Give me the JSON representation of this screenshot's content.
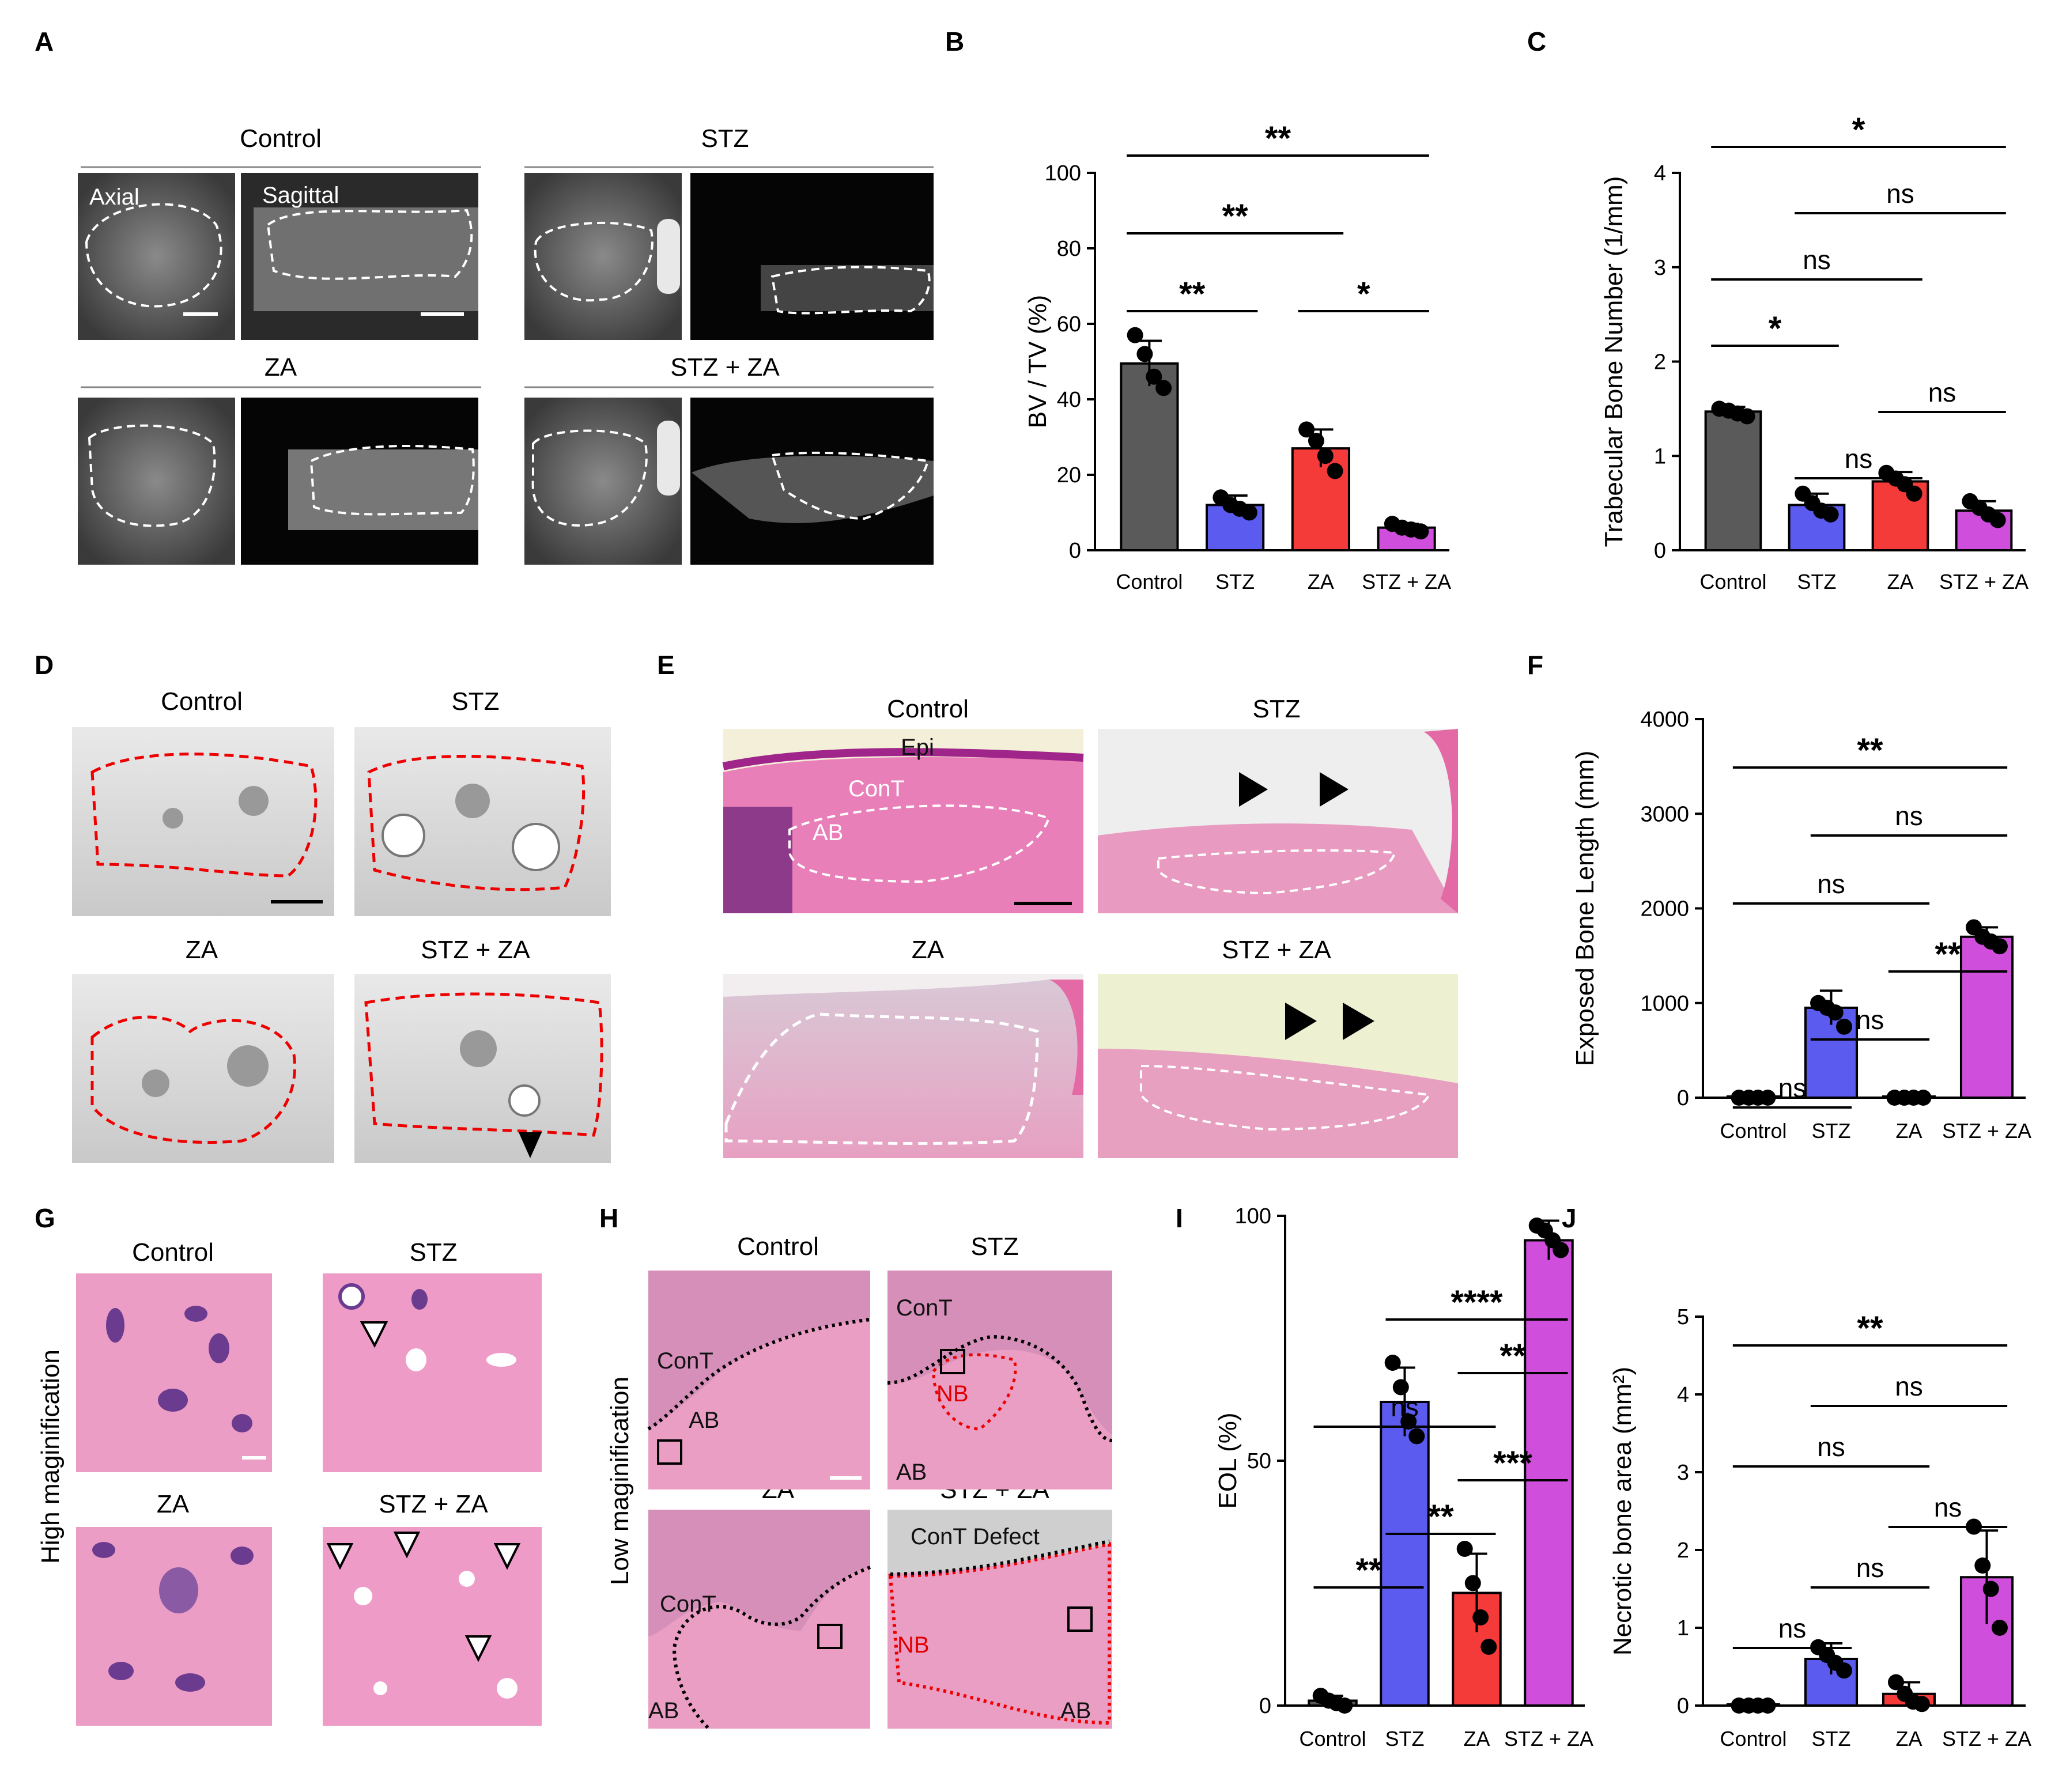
{
  "panels": {
    "A": {
      "letter": "A",
      "titles": [
        "Control",
        "STZ",
        "ZA",
        "STZ + ZA"
      ],
      "view_labels": [
        "Axial",
        "Sagittal"
      ]
    },
    "D": {
      "letter": "D",
      "titles": [
        "Control",
        "STZ",
        "ZA",
        "STZ + ZA"
      ]
    },
    "E": {
      "letter": "E",
      "titles": [
        "Control",
        "STZ",
        "ZA",
        "STZ + ZA"
      ],
      "labels": [
        "Epi",
        "ConT",
        "AB"
      ]
    },
    "G": {
      "letter": "G",
      "titles": [
        "Control",
        "STZ",
        "ZA",
        "STZ + ZA"
      ],
      "row_label": "High maginification"
    },
    "H": {
      "letter": "H",
      "titles": [
        "Control",
        "STZ",
        "ZA",
        "STZ + ZA"
      ],
      "row_label": "Low maginification",
      "labels": {
        "cont": "ConT",
        "ab": "AB",
        "nb": "NB",
        "cont_defect": "ConT Defect"
      }
    }
  },
  "colors": {
    "control": "#5a5a5a",
    "stz": "#5b5bf0",
    "za": "#f53a3a",
    "stz_za": "#cf4fdc"
  },
  "chart_data": [
    {
      "id": "B",
      "letter": "B",
      "type": "bar",
      "categories": [
        "Control",
        "STZ",
        "ZA",
        "STZ + ZA"
      ],
      "values": [
        49.5,
        12,
        27,
        6
      ],
      "errors": [
        6,
        2.5,
        5,
        1
      ],
      "points": [
        [
          57,
          52,
          46,
          43
        ],
        [
          14,
          12,
          11,
          10
        ],
        [
          32,
          29,
          25,
          21
        ],
        [
          7,
          6,
          5.5,
          5
        ]
      ],
      "ylabel": "BV / TV (%)",
      "ylim": [
        0,
        100
      ],
      "yticks": [
        0,
        20,
        40,
        60,
        80,
        100
      ],
      "brackets": [
        {
          "from": 0,
          "to": 3,
          "label": "**"
        },
        {
          "from": 0,
          "to": 2,
          "label": "**"
        },
        {
          "from": 0,
          "to": 1,
          "label": "**"
        },
        {
          "from": 2,
          "to": 3,
          "label": "*"
        }
      ]
    },
    {
      "id": "C",
      "letter": "C",
      "type": "bar",
      "categories": [
        "Control",
        "STZ",
        "ZA",
        "STZ + ZA"
      ],
      "values": [
        1.47,
        0.48,
        0.73,
        0.42
      ],
      "errors": [
        0.05,
        0.12,
        0.1,
        0.1
      ],
      "points": [
        [
          1.5,
          1.48,
          1.45,
          1.42
        ],
        [
          0.6,
          0.5,
          0.42,
          0.38
        ],
        [
          0.82,
          0.76,
          0.7,
          0.6
        ],
        [
          0.52,
          0.45,
          0.38,
          0.32
        ]
      ],
      "ylabel": "Trabecular Bone Number (1/mm)",
      "ylim": [
        0,
        4
      ],
      "yticks": [
        0,
        1,
        2,
        3,
        4
      ],
      "brackets": [
        {
          "from": 0,
          "to": 3,
          "label": "*"
        },
        {
          "from": 1,
          "to": 3,
          "label": "ns"
        },
        {
          "from": 0,
          "to": 2,
          "label": "ns"
        },
        {
          "from": 0,
          "to": 1,
          "label": "*"
        },
        {
          "from": 2,
          "to": 3,
          "label": "ns"
        },
        {
          "from": 1,
          "to": 2,
          "label": "ns"
        }
      ]
    },
    {
      "id": "F",
      "letter": "F",
      "type": "bar",
      "categories": [
        "Control",
        "STZ",
        "ZA",
        "STZ + ZA"
      ],
      "values": [
        0,
        950,
        0,
        1700
      ],
      "errors": [
        0,
        180,
        0,
        100
      ],
      "points": [
        [
          0,
          0,
          0,
          0
        ],
        [
          1000,
          950,
          900,
          750
        ],
        [
          0,
          0,
          0,
          0
        ],
        [
          1800,
          1700,
          1650,
          1600
        ]
      ],
      "ylabel": "Exposed Bone Length (mm)",
      "ylim": [
        0,
        4000
      ],
      "yticks": [
        0,
        1000,
        2000,
        3000,
        4000
      ],
      "brackets": [
        {
          "from": 0,
          "to": 3,
          "label": "**"
        },
        {
          "from": 1,
          "to": 3,
          "label": "ns"
        },
        {
          "from": 0,
          "to": 2,
          "label": "ns"
        },
        {
          "from": 2,
          "to": 3,
          "label": "**"
        },
        {
          "from": 1,
          "to": 2,
          "label": "ns"
        },
        {
          "from": 0,
          "to": 1,
          "label": "ns"
        }
      ]
    },
    {
      "id": "I",
      "letter": "I",
      "type": "bar",
      "categories": [
        "Control",
        "STZ",
        "ZA",
        "STZ + ZA"
      ],
      "values": [
        1,
        62,
        23,
        95
      ],
      "errors": [
        1,
        7,
        8,
        4
      ],
      "points": [
        [
          2,
          1,
          0.5,
          0
        ],
        [
          70,
          65,
          58,
          55
        ],
        [
          32,
          25,
          18,
          12
        ],
        [
          98,
          97,
          95,
          93
        ]
      ],
      "ylabel": "EOL (%)",
      "ylim": [
        0,
        100
      ],
      "yticks": [
        0,
        50,
        100
      ],
      "brackets": [
        {
          "from": 1,
          "to": 3,
          "label": "****"
        },
        {
          "from": 2,
          "to": 3,
          "label": "**"
        },
        {
          "from": 0,
          "to": 2,
          "label": "ns"
        },
        {
          "from": 2,
          "to": 3,
          "label": "***"
        },
        {
          "from": 1,
          "to": 2,
          "label": "**"
        },
        {
          "from": 0,
          "to": 1,
          "label": "**"
        }
      ]
    },
    {
      "id": "J",
      "letter": "J",
      "type": "bar",
      "categories": [
        "Control",
        "STZ",
        "ZA",
        "STZ + ZA"
      ],
      "values": [
        0,
        0.6,
        0.15,
        1.65
      ],
      "errors": [
        0,
        0.2,
        0.15,
        0.6
      ],
      "points": [
        [
          0,
          0,
          0,
          0
        ],
        [
          0.75,
          0.65,
          0.55,
          0.45
        ],
        [
          0.3,
          0.15,
          0.05,
          0.02
        ],
        [
          2.3,
          1.8,
          1.5,
          1.0
        ]
      ],
      "ylabel": "Necrotic bone area (mm²)",
      "ylim": [
        0,
        5
      ],
      "yticks": [
        0,
        1,
        2,
        3,
        4,
        5
      ],
      "brackets": [
        {
          "from": 0,
          "to": 3,
          "label": "**"
        },
        {
          "from": 1,
          "to": 3,
          "label": "ns"
        },
        {
          "from": 0,
          "to": 2,
          "label": "ns"
        },
        {
          "from": 2,
          "to": 3,
          "label": "ns"
        },
        {
          "from": 1,
          "to": 2,
          "label": "ns"
        },
        {
          "from": 0,
          "to": 1,
          "label": "ns"
        }
      ]
    }
  ]
}
